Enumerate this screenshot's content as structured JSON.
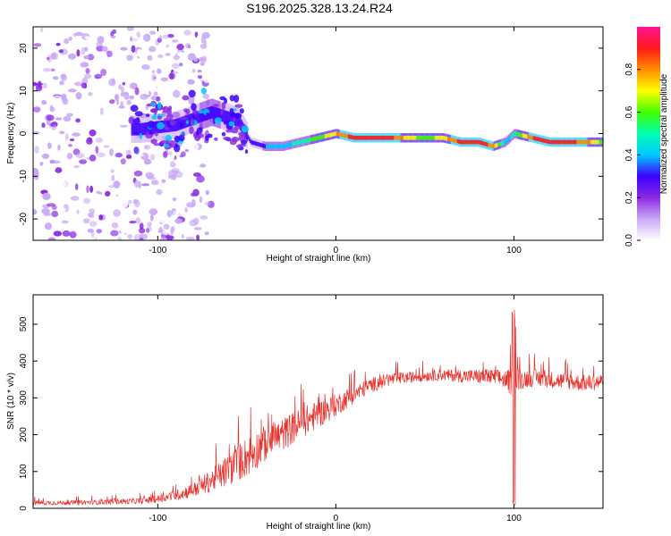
{
  "title": "S196.2025.328.13.24.R24",
  "chart_data": [
    {
      "type": "heatmap",
      "title": "S196.2025.328.13.24.R24",
      "xlabel": "Height of straight line (km)",
      "ylabel": "Frequency (Hz)",
      "xlim": [
        -170,
        150
      ],
      "ylim": [
        -25,
        25
      ],
      "xticks": [
        -100,
        0,
        100
      ],
      "yticks": [
        -20,
        -10,
        0,
        10,
        20
      ],
      "xtick_labels": [
        "-100",
        "0",
        "100"
      ],
      "ytick_labels": [
        "-20",
        "-10",
        "0",
        "10",
        "20"
      ],
      "colorbar": {
        "label": "Normalized spectral amplitude",
        "range": [
          0,
          1
        ],
        "ticks": [
          0.0,
          0.2,
          0.4,
          0.6,
          0.8
        ],
        "tick_labels": [
          "0.0",
          "0.2",
          "0.4",
          "0.6",
          "0.8"
        ],
        "colormap": [
          "#ffffff",
          "#c9a8f5",
          "#8a2be2",
          "#3c00ff",
          "#00c8ff",
          "#00ffb0",
          "#40ff00",
          "#ffff00",
          "#ff8c00",
          "#ff1a1a",
          "#ff1493"
        ]
      },
      "ridge_track": {
        "description_free_values": true,
        "x": [
          -110,
          -90,
          -70,
          -55,
          -48,
          -40,
          -30,
          -20,
          -10,
          0,
          10,
          20,
          30,
          40,
          50,
          60,
          70,
          80,
          88,
          95,
          100,
          110,
          120,
          130,
          140,
          150
        ],
        "frequency": [
          1,
          2,
          5,
          3,
          -2,
          -3,
          -3,
          -2,
          -1,
          0,
          -1,
          -1,
          -1,
          -1,
          -1,
          -1,
          -2,
          -2,
          -3,
          -2,
          0,
          -1,
          -2,
          -2,
          -2,
          -2
        ],
        "amplitude": [
          0.25,
          0.3,
          0.35,
          0.3,
          0.25,
          0.35,
          0.4,
          0.5,
          0.6,
          0.75,
          0.9,
          0.95,
          0.9,
          0.7,
          0.6,
          0.7,
          0.9,
          0.95,
          0.8,
          0.4,
          0.5,
          0.85,
          0.95,
          0.9,
          0.8,
          0.6
        ]
      },
      "noise_region_x": [
        -170,
        -80
      ]
    },
    {
      "type": "line",
      "xlabel": "Height of straight line (km)",
      "ylabel": "SNR (10 * v/v)",
      "xlim": [
        -170,
        150
      ],
      "ylim": [
        0,
        580
      ],
      "xticks": [
        -100,
        0,
        100
      ],
      "yticks": [
        0,
        100,
        200,
        300,
        400,
        500
      ],
      "xtick_labels": [
        "-100",
        "0",
        "100"
      ],
      "ytick_labels": [
        "0",
        "100",
        "200",
        "300",
        "400",
        "500"
      ],
      "series": [
        {
          "name": "SNR",
          "color": "#e8302b",
          "envelope_x": [
            -170,
            -150,
            -130,
            -110,
            -100,
            -90,
            -80,
            -70,
            -60,
            -50,
            -40,
            -30,
            -20,
            -10,
            0,
            10,
            20,
            30,
            40,
            50,
            60,
            70,
            80,
            90,
            95,
            99,
            100,
            101,
            103,
            106,
            110,
            120,
            130,
            140,
            150
          ],
          "envelope_base": [
            15,
            15,
            17,
            20,
            25,
            35,
            50,
            75,
            105,
            140,
            175,
            200,
            230,
            255,
            280,
            310,
            335,
            350,
            355,
            360,
            362,
            360,
            358,
            355,
            350,
            340,
            330,
            340,
            350,
            352,
            355,
            350,
            345,
            340,
            345
          ],
          "envelope_amplitude": [
            12,
            12,
            14,
            16,
            20,
            28,
            40,
            60,
            90,
            110,
            100,
            90,
            85,
            75,
            60,
            50,
            40,
            35,
            30,
            30,
            30,
            35,
            40,
            45,
            50,
            80,
            220,
            80,
            60,
            50,
            50,
            45,
            45,
            45,
            45
          ],
          "point_count": 1300
        }
      ]
    }
  ]
}
